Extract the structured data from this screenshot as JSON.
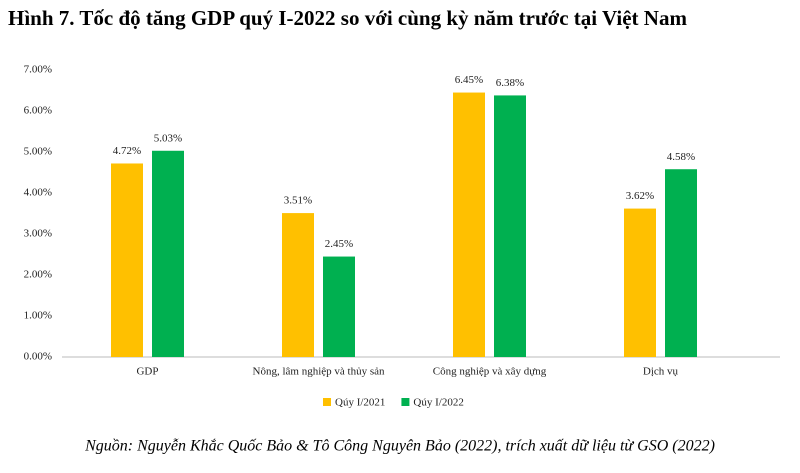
{
  "chart_data": {
    "type": "bar",
    "title": "Hình 7. Tốc độ tăng GDP quý I-2022 so với cùng kỳ năm trước tại Việt Nam",
    "categories": [
      "GDP",
      "Nông, lâm nghiệp và thủy sản",
      "Công nghiệp và xây dựng",
      "Dịch vụ"
    ],
    "series": [
      {
        "name": "Qúy I/2021",
        "color": "#FFC000",
        "values": [
          4.72,
          3.51,
          6.45,
          3.62
        ],
        "value_labels": [
          "4.72%",
          "3.51%",
          "6.45%",
          "3.62%"
        ]
      },
      {
        "name": "Qúy I/2022",
        "color": "#00B050",
        "values": [
          5.03,
          2.45,
          6.38,
          4.58
        ],
        "value_labels": [
          "5.03%",
          "2.45%",
          "6.38%",
          "4.58%"
        ]
      }
    ],
    "ylim": [
      0,
      7
    ],
    "yticks": [
      {
        "value": 0,
        "label": "0.00%"
      },
      {
        "value": 1,
        "label": "1.00%"
      },
      {
        "value": 2,
        "label": "2.00%"
      },
      {
        "value": 3,
        "label": "3.00%"
      },
      {
        "value": 4,
        "label": "4.00%"
      },
      {
        "value": 5,
        "label": "5.00%"
      },
      {
        "value": 6,
        "label": "6.00%"
      },
      {
        "value": 7,
        "label": "7.00%"
      }
    ],
    "grid": false,
    "legend": "bottom",
    "source": "Nguồn: Nguyễn Khắc Quốc Bảo & Tô Công Nguyên Bảo (2022), trích xuất dữ liệu từ GSO (2022)"
  }
}
